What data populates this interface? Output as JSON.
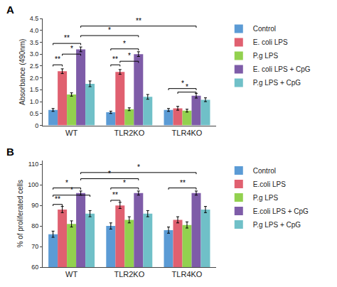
{
  "chart_data": [
    {
      "type": "bar",
      "title": "A",
      "categories": [
        "WT",
        "TLR2KO",
        "TLR4KO"
      ],
      "series": [
        {
          "name": "Control",
          "color": "#5b9bd5",
          "values": [
            0.65,
            0.55,
            0.65
          ],
          "errors": [
            0.06,
            0.05,
            0.06
          ]
        },
        {
          "name": "E. coli LPS",
          "color": "#e06070",
          "values": [
            2.28,
            2.25,
            0.72
          ],
          "errors": [
            0.1,
            0.1,
            0.08
          ]
        },
        {
          "name": "P.g LPS",
          "color": "#92d14f",
          "values": [
            1.3,
            0.68,
            0.62
          ],
          "errors": [
            0.07,
            0.06,
            0.06
          ]
        },
        {
          "name": "E. coli LPS + CpG",
          "color": "#7e5ca8",
          "values": [
            3.2,
            3.0,
            1.25
          ],
          "errors": [
            0.1,
            0.1,
            0.1
          ]
        },
        {
          "name": "P.g LPS + CpG",
          "color": "#70c0c8",
          "values": [
            1.75,
            1.2,
            1.08
          ],
          "errors": [
            0.12,
            0.1,
            0.08
          ]
        }
      ],
      "ylabel": "Absorbance (490nm)",
      "ylim": [
        0,
        4.5
      ],
      "yticks": [
        0,
        0.5,
        {
          "value": 1.0,
          "label": "1.0"
        },
        1.5,
        {
          "value": 2.0,
          "label": "2.0"
        },
        2.5,
        {
          "value": 3.0,
          "label": "3.0"
        },
        3.5,
        {
          "value": 4.0,
          "label": "4.0"
        },
        4.5
      ],
      "grid": false,
      "legend": "right",
      "annotations": [
        {
          "text": "**",
          "y": 2.55,
          "from": {
            "category": "WT",
            "series": "Control"
          },
          "to": {
            "category": "WT",
            "series": "E. coli LPS"
          }
        },
        {
          "text": "**",
          "y": 3.45,
          "from": {
            "category": "WT",
            "series": "Control"
          },
          "to": {
            "category": "WT",
            "series": "E. coli LPS + CpG"
          }
        },
        {
          "text": "*",
          "y": 3.0,
          "from": {
            "category": "WT",
            "series": "E. coli LPS"
          },
          "to": {
            "category": "WT",
            "series": "E. coli LPS + CpG"
          }
        },
        {
          "text": "**",
          "y": 2.55,
          "from": {
            "category": "TLR2KO",
            "series": "Control"
          },
          "to": {
            "category": "TLR2KO",
            "series": "E. coli LPS"
          }
        },
        {
          "text": "*",
          "y": 2.7,
          "from": {
            "category": "TLR2KO",
            "series": "E. coli LPS"
          },
          "to": {
            "category": "TLR2KO",
            "series": "E. coli LPS + CpG"
          }
        },
        {
          "text": "*",
          "y": 3.22,
          "from": {
            "category": "TLR2KO",
            "series": "Control"
          },
          "to": {
            "category": "TLR2KO",
            "series": "E. coli LPS + CpG"
          }
        },
        {
          "text": "*",
          "y": 1.55,
          "from": {
            "category": "TLR4KO",
            "series": "Control"
          },
          "to": {
            "category": "TLR4KO",
            "series": "E. coli LPS + CpG"
          }
        },
        {
          "text": "*",
          "y": 1.4,
          "from": {
            "category": "TLR4KO",
            "series": "E. coli LPS"
          },
          "to": {
            "category": "TLR4KO",
            "series": "E. coli LPS + CpG"
          }
        },
        {
          "text": "*",
          "y": 3.78,
          "from": {
            "category": "WT",
            "series": "E. coli LPS + CpG"
          },
          "to": {
            "category": "TLR2KO",
            "series": "E. coli LPS + CpG"
          }
        },
        {
          "text": "**",
          "y": 4.18,
          "from": {
            "category": "WT",
            "series": "E. coli LPS + CpG"
          },
          "to": {
            "category": "TLR4KO",
            "series": "E. coli LPS + CpG"
          }
        }
      ]
    },
    {
      "type": "bar",
      "title": "B",
      "categories": [
        "WT",
        "TLR2KO",
        "TLR4KO"
      ],
      "series": [
        {
          "name": "Control",
          "color": "#5b9bd5",
          "values": [
            76,
            80,
            78
          ],
          "errors": [
            1.5,
            1.5,
            1.5
          ]
        },
        {
          "name": "E.coli LPS",
          "color": "#e06070",
          "values": [
            88,
            90,
            83
          ],
          "errors": [
            1.5,
            1.5,
            1.5
          ]
        },
        {
          "name": "P.g LPS",
          "color": "#92d14f",
          "values": [
            81,
            83,
            80.5
          ],
          "errors": [
            1.5,
            1.5,
            1.5
          ]
        },
        {
          "name": "E.coli LPS + CpG",
          "color": "#7e5ca8",
          "values": [
            96,
            96,
            96
          ],
          "errors": [
            1.0,
            1.0,
            1.0
          ]
        },
        {
          "name": "P.g LPS + CpG",
          "color": "#70c0c8",
          "values": [
            86,
            86,
            88
          ],
          "errors": [
            1.5,
            1.5,
            1.5
          ]
        }
      ],
      "ylabel": "% of proliferated cells",
      "ylim": [
        60,
        112
      ],
      "yticks": [
        60,
        70,
        80,
        90,
        100,
        110
      ],
      "grid": false,
      "legend": "right",
      "annotations": [
        {
          "text": "**",
          "y": 90.5,
          "from": {
            "category": "WT",
            "series": "Control"
          },
          "to": {
            "category": "WT",
            "series": "E.coli LPS"
          }
        },
        {
          "text": "*",
          "y": 98.5,
          "from": {
            "category": "WT",
            "series": "Control"
          },
          "to": {
            "category": "WT",
            "series": "E.coli LPS + CpG"
          }
        },
        {
          "text": "*",
          "y": 95.0,
          "from": {
            "category": "WT",
            "series": "Control"
          },
          "to": {
            "category": "WT",
            "series": "P.g LPS + CpG"
          }
        },
        {
          "text": "**",
          "y": 92.5,
          "from": {
            "category": "TLR2KO",
            "series": "Control"
          },
          "to": {
            "category": "TLR2KO",
            "series": "E.coli LPS"
          }
        },
        {
          "text": "*",
          "y": 98.5,
          "from": {
            "category": "TLR2KO",
            "series": "Control"
          },
          "to": {
            "category": "TLR2KO",
            "series": "E.coli LPS + CpG"
          }
        },
        {
          "text": "**",
          "y": 98.5,
          "from": {
            "category": "TLR4KO",
            "series": "Control"
          },
          "to": {
            "category": "TLR4KO",
            "series": "E.coli LPS + CpG"
          }
        },
        {
          "text": "*",
          "y": 103,
          "from": {
            "category": "WT",
            "series": "E.coli LPS + CpG"
          },
          "to": {
            "category": "TLR2KO",
            "series": "E.coli LPS + CpG"
          }
        },
        {
          "text": "*",
          "y": 106,
          "from": {
            "category": "WT",
            "series": "E.coli LPS + CpG"
          },
          "to": {
            "category": "TLR4KO",
            "series": "E.coli LPS + CpG"
          }
        }
      ]
    }
  ]
}
